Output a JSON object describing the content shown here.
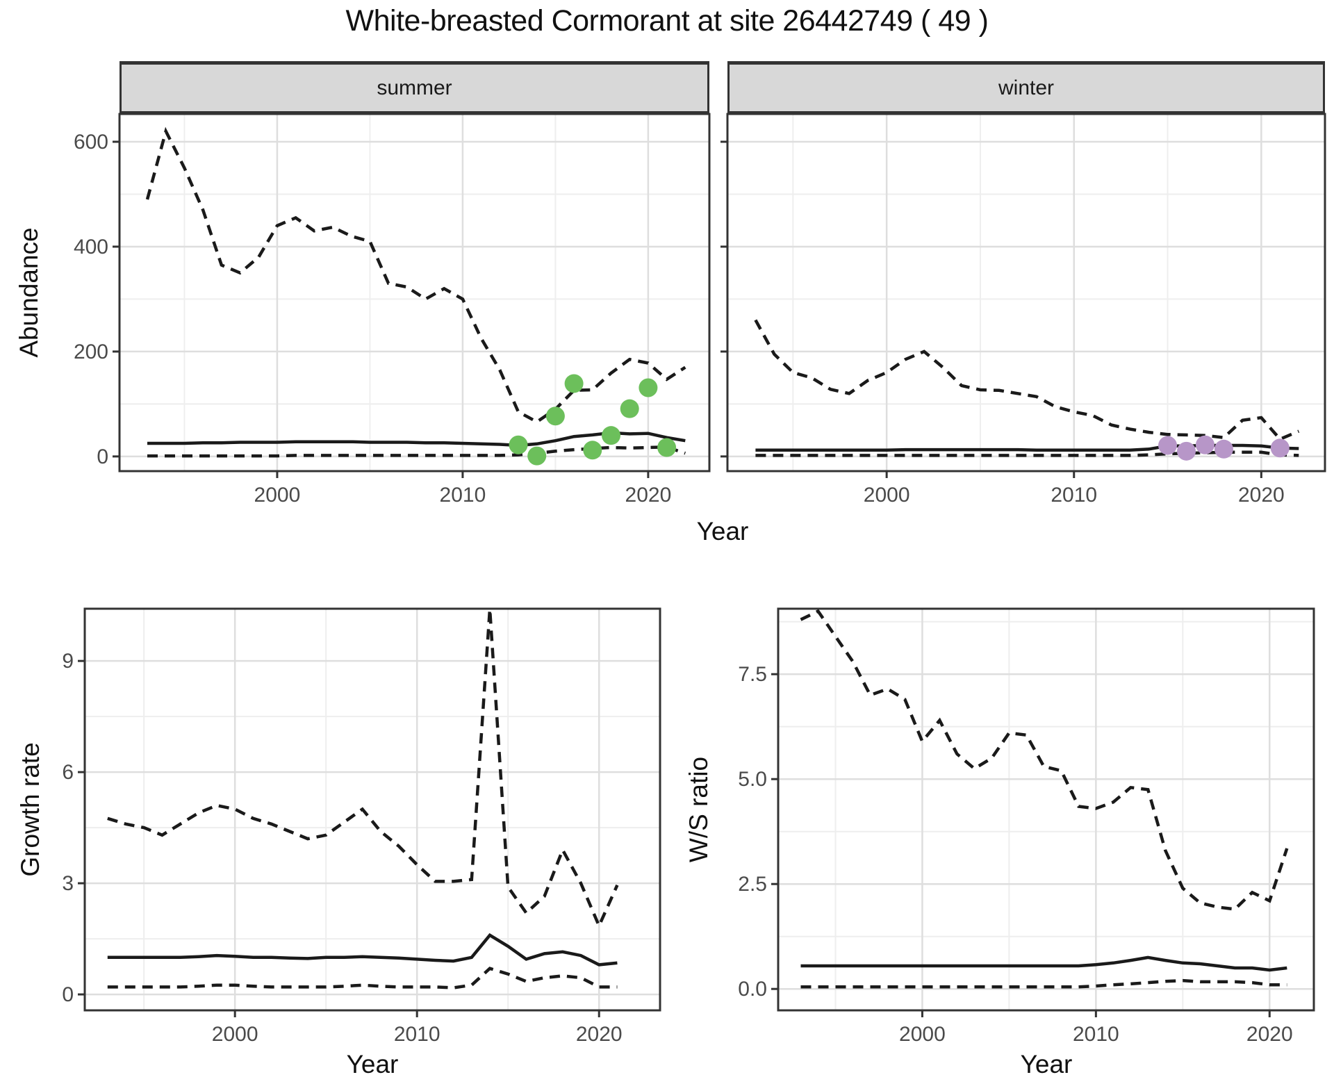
{
  "title": "White-breasted Cormorant at site 26442749 ( 49 )",
  "facets": {
    "summer": "summer",
    "winter": "winter"
  },
  "axis_titles": {
    "abundance": "Abundance",
    "year": "Year",
    "growth_rate": "Growth rate",
    "ws_ratio": "W/S ratio"
  },
  "colors": {
    "observed_summer": "#6cbf5b",
    "observed_winter": "#b796c8",
    "line": "#1a1a1a",
    "grid_major": "#dedede",
    "grid_minor": "#eeeeee",
    "panel_border": "#333333",
    "strip_fill": "#d8d8d8",
    "tick_label": "#4a4a4a",
    "tick_mark": "#333333"
  },
  "chart_data": {
    "type": "line",
    "title": "White-breasted Cormorant at site 26442749 ( 49 )",
    "grid": true,
    "legend": "none",
    "panels": [
      {
        "id": "abundance_summer",
        "facet": "summer",
        "xlabel": "Year",
        "ylabel": "Abundance",
        "xlim": [
          1991.5,
          2023.3
        ],
        "ylim": [
          -28,
          653
        ],
        "xticks": [
          {
            "v": 2000,
            "label": "2000"
          },
          {
            "v": 2010,
            "label": "2010"
          },
          {
            "v": 2020,
            "label": "2020"
          }
        ],
        "yticks": [
          {
            "v": 0,
            "label": "0"
          },
          {
            "v": 200,
            "label": "200"
          },
          {
            "v": 400,
            "label": "400"
          },
          {
            "v": 600,
            "label": "600"
          }
        ],
        "xminor": [
          1995,
          2005,
          2015
        ],
        "yminor": [
          100,
          300,
          500
        ],
        "years": [
          1993,
          1994,
          1995,
          1996,
          1997,
          1998,
          1999,
          2000,
          2001,
          2002,
          2003,
          2004,
          2005,
          2006,
          2007,
          2008,
          2009,
          2010,
          2011,
          2012,
          2013,
          2014,
          2015,
          2016,
          2017,
          2018,
          2019,
          2020,
          2021,
          2022
        ],
        "series": [
          {
            "name": "upper95",
            "style": "dashed",
            "values": [
              490,
              620,
              550,
              470,
              365,
              350,
              380,
              440,
              455,
              430,
              437,
              420,
              410,
              330,
              323,
              300,
              320,
              300,
              225,
              165,
              85,
              66,
              90,
              126,
              127,
              159,
              185,
              178,
              147,
              170
            ]
          },
          {
            "name": "median",
            "style": "solid",
            "values": [
              25,
              25,
              25,
              26,
              26,
              27,
              27,
              27,
              28,
              28,
              28,
              28,
              27,
              27,
              27,
              26,
              26,
              25,
              24,
              23,
              21,
              24,
              30,
              38,
              41,
              45,
              43,
              44,
              36,
              30
            ]
          },
          {
            "name": "lower95",
            "style": "dashed",
            "values": [
              1,
              1,
              1,
              1,
              1,
              1,
              1,
              1,
              2,
              2,
              2,
              2,
              2,
              2,
              2,
              2,
              2,
              2,
              2,
              2,
              3,
              6,
              10,
              13,
              15,
              17,
              16,
              17,
              18,
              6
            ]
          }
        ],
        "observations": {
          "color_key": "observed_summer",
          "x": [
            2013,
            2014,
            2015,
            2016,
            2017,
            2018,
            2019,
            2020,
            2021
          ],
          "y": [
            22,
            1,
            77,
            139,
            12,
            40,
            91,
            131,
            17
          ]
        }
      },
      {
        "id": "abundance_winter",
        "facet": "winter",
        "xlabel": "Year",
        "ylabel": "Abundance",
        "xlim": [
          1991.5,
          2023.4
        ],
        "ylim": [
          -28,
          653
        ],
        "xticks": [
          {
            "v": 2000,
            "label": "2000"
          },
          {
            "v": 2010,
            "label": "2010"
          },
          {
            "v": 2020,
            "label": "2020"
          }
        ],
        "yticks": [
          {
            "v": 0,
            "label": ""
          },
          {
            "v": 200,
            "label": ""
          },
          {
            "v": 400,
            "label": ""
          },
          {
            "v": 600,
            "label": ""
          }
        ],
        "xminor": [
          1995,
          2005,
          2015
        ],
        "yminor": [
          100,
          300,
          500
        ],
        "years": [
          1993,
          1994,
          1995,
          1996,
          1997,
          1998,
          1999,
          2000,
          2001,
          2002,
          2003,
          2004,
          2005,
          2006,
          2007,
          2008,
          2009,
          2010,
          2011,
          2012,
          2013,
          2014,
          2015,
          2016,
          2017,
          2018,
          2019,
          2020,
          2021,
          2022
        ],
        "series": [
          {
            "name": "upper95",
            "style": "dashed",
            "values": [
              260,
              195,
              160,
              150,
              128,
              120,
              145,
              160,
              185,
              200,
              170,
              135,
              127,
              126,
              120,
              114,
              95,
              85,
              78,
              60,
              52,
              46,
              42,
              41,
              40,
              36,
              69,
              74,
              33,
              48
            ]
          },
          {
            "name": "median",
            "style": "solid",
            "values": [
              12,
              12,
              12,
              12,
              12,
              12,
              12,
              12,
              13,
              13,
              13,
              13,
              13,
              13,
              13,
              12,
              12,
              12,
              12,
              12,
              12,
              14,
              20,
              20,
              21,
              21,
              21,
              20,
              16,
              15
            ]
          },
          {
            "name": "lower95",
            "style": "dashed",
            "values": [
              2,
              2,
              2,
              2,
              2,
              2,
              2,
              2,
              2,
              2,
              2,
              2,
              2,
              2,
              2,
              2,
              2,
              2,
              2,
              2,
              2,
              3,
              5,
              6,
              7,
              8,
              8,
              8,
              3,
              2
            ]
          }
        ],
        "observations": {
          "color_key": "observed_winter",
          "x": [
            2015,
            2016,
            2017,
            2018,
            2021
          ],
          "y": [
            21,
            10,
            22,
            14,
            16
          ]
        }
      },
      {
        "id": "growth_rate",
        "facet": null,
        "xlabel": "Year",
        "ylabel": "Growth rate",
        "xlim": [
          1991.75,
          2023.35
        ],
        "ylim": [
          -0.43,
          10.41
        ],
        "xticks": [
          {
            "v": 2000,
            "label": "2000"
          },
          {
            "v": 2010,
            "label": "2010"
          },
          {
            "v": 2020,
            "label": "2020"
          }
        ],
        "yticks": [
          {
            "v": 0,
            "label": "0"
          },
          {
            "v": 3,
            "label": "3"
          },
          {
            "v": 6,
            "label": "6"
          },
          {
            "v": 9,
            "label": "9"
          }
        ],
        "xminor": [
          1995,
          2005,
          2015
        ],
        "yminor": [
          1.5,
          4.5,
          7.5
        ],
        "years": [
          1993,
          1994,
          1995,
          1996,
          1997,
          1998,
          1999,
          2000,
          2001,
          2002,
          2003,
          2004,
          2005,
          2006,
          2007,
          2008,
          2009,
          2010,
          2011,
          2012,
          2013,
          2014,
          2015,
          2016,
          2017,
          2018,
          2019,
          2020,
          2021
        ],
        "series": [
          {
            "name": "upper95",
            "style": "dashed",
            "values": [
              4.75,
              4.6,
              4.5,
              4.3,
              4.6,
              4.9,
              5.1,
              5.0,
              4.75,
              4.6,
              4.4,
              4.2,
              4.3,
              4.65,
              5.0,
              4.4,
              4.0,
              3.5,
              3.05,
              3.05,
              3.1,
              10.4,
              2.9,
              2.2,
              2.65,
              3.9,
              3.0,
              1.85,
              2.95
            ]
          },
          {
            "name": "median",
            "style": "solid",
            "values": [
              1.0,
              1.0,
              1.0,
              1.0,
              1.0,
              1.02,
              1.05,
              1.03,
              1.0,
              1.0,
              0.98,
              0.97,
              1.0,
              1.0,
              1.02,
              1.0,
              0.98,
              0.95,
              0.92,
              0.9,
              1.0,
              1.6,
              1.3,
              0.95,
              1.1,
              1.15,
              1.05,
              0.8,
              0.85
            ]
          },
          {
            "name": "lower95",
            "style": "dashed",
            "values": [
              0.2,
              0.2,
              0.2,
              0.2,
              0.2,
              0.22,
              0.25,
              0.25,
              0.22,
              0.2,
              0.2,
              0.2,
              0.2,
              0.22,
              0.25,
              0.22,
              0.2,
              0.2,
              0.2,
              0.18,
              0.25,
              0.7,
              0.55,
              0.35,
              0.45,
              0.5,
              0.45,
              0.2,
              0.2
            ]
          }
        ],
        "observations": {
          "color_key": null,
          "x": [],
          "y": []
        }
      },
      {
        "id": "ws_ratio",
        "facet": null,
        "xlabel": "Year",
        "ylabel": "W/S ratio",
        "xlim": [
          1991.7,
          2022.55
        ],
        "ylim": [
          -0.51,
          9.06
        ],
        "xticks": [
          {
            "v": 2000,
            "label": "2000"
          },
          {
            "v": 2010,
            "label": "2010"
          },
          {
            "v": 2020,
            "label": "2020"
          }
        ],
        "yticks": [
          {
            "v": 0,
            "label": "0.0"
          },
          {
            "v": 2.5,
            "label": "2.5"
          },
          {
            "v": 5,
            "label": "5.0"
          },
          {
            "v": 7.5,
            "label": "7.5"
          }
        ],
        "xminor": [
          1995,
          2005,
          2015
        ],
        "yminor": [
          1.25,
          3.75,
          6.25,
          8.75
        ],
        "years": [
          1993,
          1994,
          1995,
          1996,
          1997,
          1998,
          1999,
          2000,
          2001,
          2002,
          2003,
          2004,
          2005,
          2006,
          2007,
          2008,
          2009,
          2010,
          2011,
          2012,
          2013,
          2014,
          2015,
          2016,
          2017,
          2018,
          2019,
          2020,
          2021
        ],
        "series": [
          {
            "name": "upper95",
            "style": "dashed",
            "values": [
              8.8,
              9.0,
              8.4,
              7.8,
              7.0,
              7.15,
              6.9,
              5.9,
              6.4,
              5.6,
              5.25,
              5.5,
              6.1,
              6.05,
              5.3,
              5.2,
              4.35,
              4.3,
              4.45,
              4.8,
              4.75,
              3.3,
              2.4,
              2.05,
              1.95,
              1.9,
              2.3,
              2.1,
              3.35
            ]
          },
          {
            "name": "median",
            "style": "solid",
            "values": [
              0.55,
              0.55,
              0.55,
              0.55,
              0.55,
              0.55,
              0.55,
              0.55,
              0.55,
              0.55,
              0.55,
              0.55,
              0.55,
              0.55,
              0.55,
              0.55,
              0.55,
              0.58,
              0.62,
              0.68,
              0.75,
              0.68,
              0.62,
              0.6,
              0.55,
              0.5,
              0.5,
              0.45,
              0.5
            ]
          },
          {
            "name": "lower95",
            "style": "dashed",
            "values": [
              0.05,
              0.05,
              0.05,
              0.05,
              0.05,
              0.05,
              0.05,
              0.05,
              0.05,
              0.05,
              0.05,
              0.05,
              0.05,
              0.05,
              0.05,
              0.05,
              0.05,
              0.07,
              0.1,
              0.12,
              0.15,
              0.18,
              0.2,
              0.17,
              0.17,
              0.17,
              0.15,
              0.1,
              0.1
            ]
          }
        ],
        "observations": {
          "color_key": null,
          "x": [],
          "y": []
        }
      }
    ]
  }
}
